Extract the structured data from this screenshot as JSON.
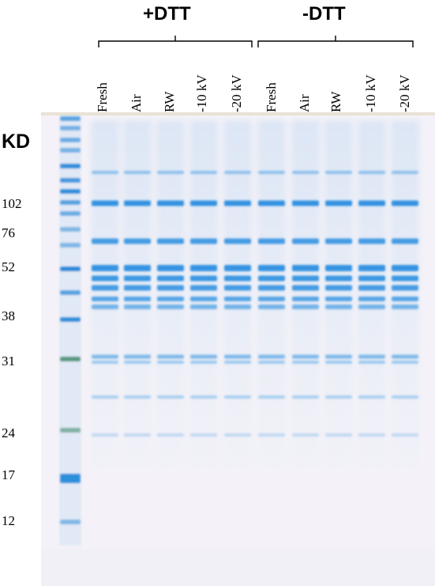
{
  "groups": {
    "plus_dtt": "+DTT",
    "minus_dtt": "-DTT"
  },
  "lanes": [
    "Fresh",
    "Air",
    "RW",
    "-10 kV",
    "-20 kV",
    "Fresh",
    "Air",
    "RW",
    "-10 kV",
    "-20 kV"
  ],
  "ladder": {
    "unit_label": "KD",
    "markers": [
      "102",
      "76",
      "52",
      "38",
      "31",
      "24",
      "17",
      "12"
    ]
  },
  "colors": {
    "gel_background": "#f4f2f8",
    "band": "#2a8ee0",
    "ladder_band": "#1b86d8",
    "ladder_green": "#3f8a6a"
  }
}
